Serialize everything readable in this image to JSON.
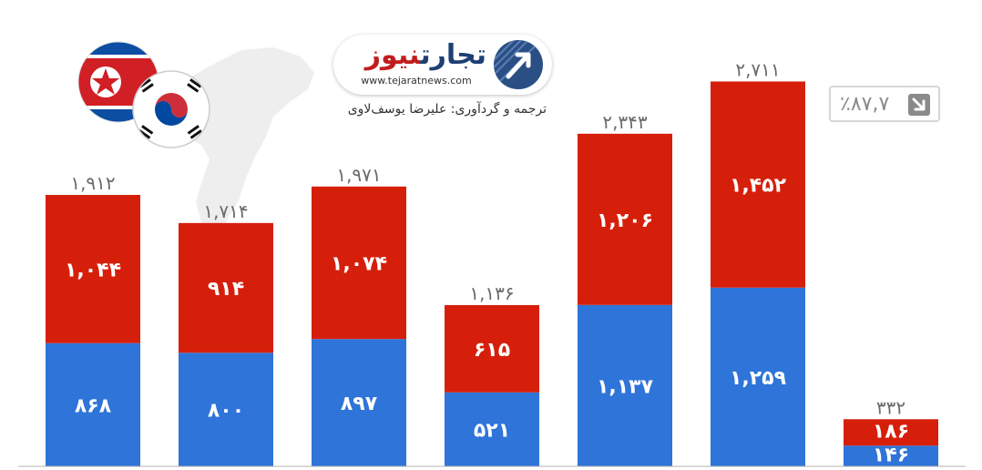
{
  "chart_data": {
    "type": "bar",
    "stacked": true,
    "categories": [
      "",
      "",
      "",
      "",
      "",
      "",
      ""
    ],
    "series": [
      {
        "values": [
          868,
          800,
          897,
          521,
          1137,
          1259,
          146
        ],
        "color": "#2f74d8"
      },
      {
        "values": [
          1044,
          914,
          1074,
          615,
          1206,
          1452,
          186
        ],
        "color": "#d61f0b"
      }
    ],
    "totals": [
      1912,
      1714,
      1971,
      1136,
      2343,
      2711,
      332
    ],
    "bottom_labels": [
      [
        "۸۶۸",
        "۸۰۰",
        "۸۹۷",
        "۵۲۱",
        "۱,۱۳۷",
        "۱,۲۵۹",
        "۱۴۶"
      ]
    ],
    "top_labels": [
      [
        "۱,۰۴۴",
        "۹۱۴",
        "۱,۰۷۴",
        "۶۱۵",
        "۱,۲۰۶",
        "۱,۴۵۲",
        "۱۸۶"
      ]
    ],
    "total_labels": [
      "۱,۹۱۲",
      "۱,۷۱۴",
      "۱,۹۷۱",
      "۱,۱۳۶",
      "۲,۳۴۳",
      "۲,۷۱۱",
      "۳۳۲"
    ],
    "ylim": [
      0,
      2900
    ],
    "grid": false,
    "legend": "none"
  },
  "change": {
    "value": "٪۸۷,۷",
    "icon": "arrow-down-right-icon",
    "color": "#8a8a8a"
  },
  "logo": {
    "brand_red": "نیوز",
    "brand_blue": "تجارت",
    "url": "www.tejaratnews.com",
    "icon": "tejarat-news-emblem-icon"
  },
  "credit": "ترجمه و گردآوری: علیرضا یوسف‌لاوی",
  "flags": {
    "north_korea": "north-korea-flag-icon",
    "south_korea": "south-korea-flag-icon",
    "map": "korean-peninsula-map-icon"
  }
}
